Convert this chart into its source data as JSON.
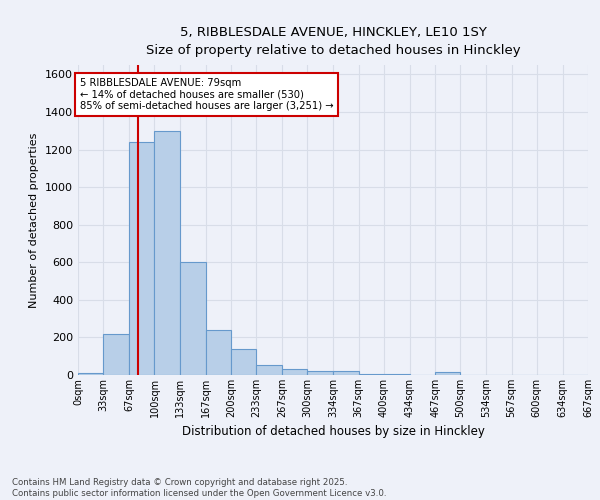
{
  "title1": "5, RIBBLESDALE AVENUE, HINCKLEY, LE10 1SY",
  "title2": "Size of property relative to detached houses in Hinckley",
  "xlabel": "Distribution of detached houses by size in Hinckley",
  "ylabel": "Number of detached properties",
  "bin_labels": [
    "0sqm",
    "33sqm",
    "67sqm",
    "100sqm",
    "133sqm",
    "167sqm",
    "200sqm",
    "233sqm",
    "267sqm",
    "300sqm",
    "334sqm",
    "367sqm",
    "400sqm",
    "434sqm",
    "467sqm",
    "500sqm",
    "534sqm",
    "567sqm",
    "600sqm",
    "634sqm",
    "667sqm"
  ],
  "bin_edges": [
    0,
    33,
    67,
    100,
    133,
    167,
    200,
    233,
    267,
    300,
    334,
    367,
    400,
    434,
    467,
    500,
    534,
    567,
    600,
    634,
    667
  ],
  "bar_heights": [
    10,
    220,
    1240,
    1300,
    600,
    240,
    140,
    55,
    30,
    20,
    20,
    5,
    5,
    0,
    15,
    0,
    0,
    0,
    0,
    0
  ],
  "bar_color": "#b8cfe8",
  "bar_edge_color": "#6699cc",
  "red_line_x": 79,
  "red_line_color": "#cc0000",
  "annotation_text": "5 RIBBLESDALE AVENUE: 79sqm\n← 14% of detached houses are smaller (530)\n85% of semi-detached houses are larger (3,251) →",
  "annotation_box_color": "#ffffff",
  "annotation_box_edge": "#cc0000",
  "ylim": [
    0,
    1650
  ],
  "yticks": [
    0,
    200,
    400,
    600,
    800,
    1000,
    1200,
    1400,
    1600
  ],
  "background_color": "#eef1f9",
  "grid_color": "#d8dde8",
  "footer_text": "Contains HM Land Registry data © Crown copyright and database right 2025.\nContains public sector information licensed under the Open Government Licence v3.0.",
  "title_fontsize": 10,
  "subtitle_fontsize": 9
}
